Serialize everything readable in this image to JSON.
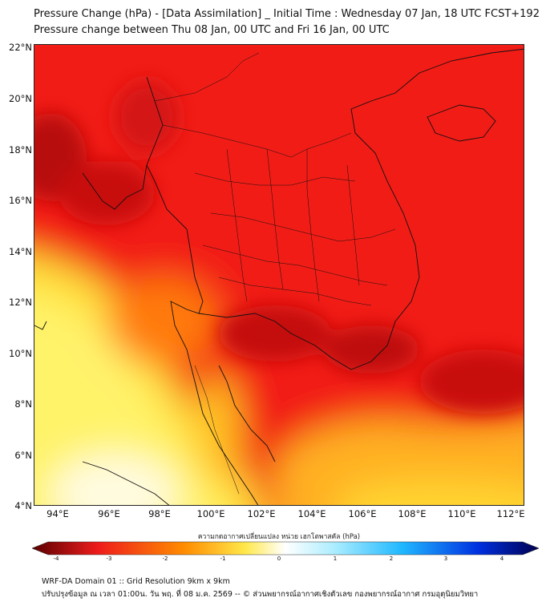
{
  "title_line1": "Pressure Change (hPa) - [Data Assimilation] _ Initial Time : Wednesday 07 Jan, 18 UTC FCST+192",
  "title_line2": "Pressure change between Thu 08 Jan, 00 UTC and Fri 16 Jan, 00 UTC",
  "lat_labels": [
    "22°N",
    "20°N",
    "18°N",
    "16°N",
    "14°N",
    "12°N",
    "10°N",
    "8°N",
    "6°N",
    "4°N"
  ],
  "lon_labels": [
    "94°E",
    "96°E",
    "98°E",
    "100°E",
    "102°E",
    "104°E",
    "106°E",
    "108°E",
    "110°E",
    "112°E"
  ],
  "colorbar": {
    "title": "ความกดอากาศเปลี่ยนแปลง หน่วย เฮกโตพาสคัล (hPa)",
    "ticks": [
      "-4",
      "-3",
      "-2",
      "-1",
      "0",
      "1",
      "2",
      "3",
      "4"
    ],
    "range": [
      -4,
      4
    ],
    "colors": {
      "min": "#5a0000",
      "strong_negative": "#ee1c1c",
      "moderate_negative": "#ff8c00",
      "weak_negative": "#ffe84a",
      "zero": "#ffffff",
      "weak_positive": "#a8ecff",
      "moderate_positive": "#20b8ff",
      "strong_positive": "#0030e0",
      "max": "#000050"
    }
  },
  "footer_line1": "WRF-DA Domain 01 :: Grid Resolution 9km x 9km",
  "footer_line2": "ปรับปรุงข้อมูล ณ เวลา 01:00น. วัน พฤ. ที่ 08 ม.ค. 2569 -- © ส่วนพยากรณ์อากาศเชิงตัวเลข กองพยากรณ์อากาศ กรมอุตุนิยมวิทยา"
}
